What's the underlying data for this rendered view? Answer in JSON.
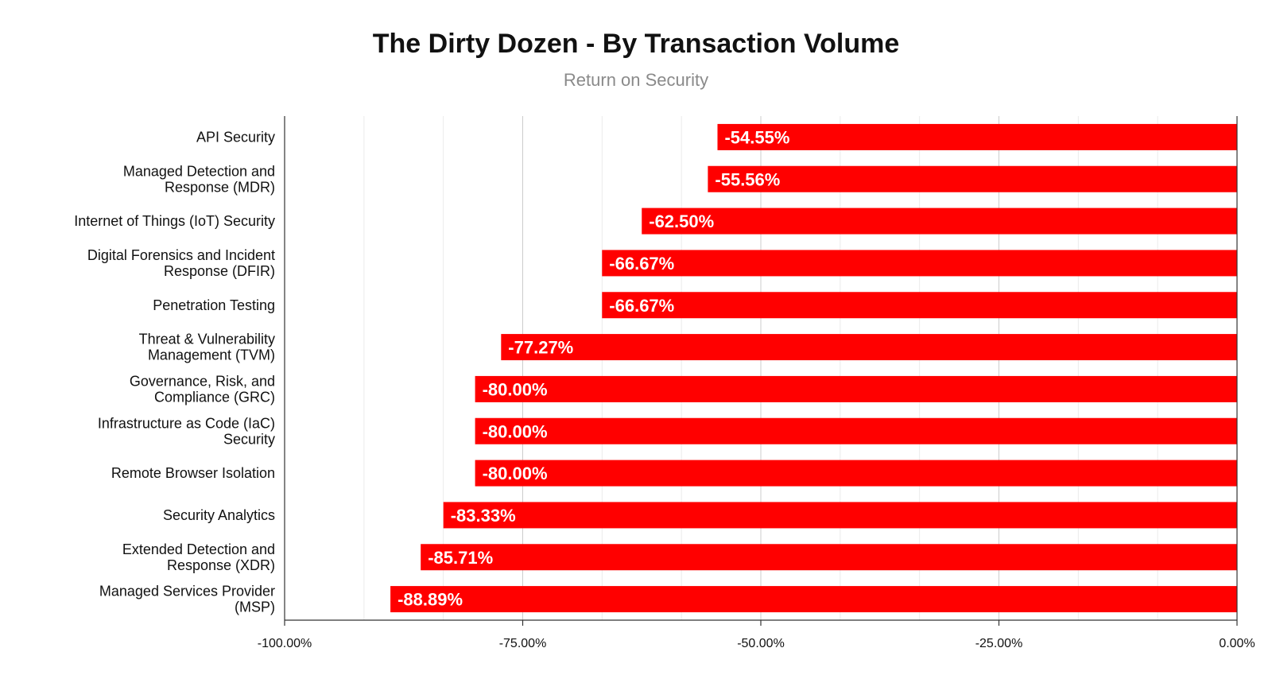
{
  "chart_data": {
    "type": "bar",
    "orientation": "horizontal",
    "title": "The Dirty Dozen - By Transaction Volume",
    "subtitle": "Return on Security",
    "xlabel": "",
    "ylabel": "",
    "xlim": [
      -100,
      0
    ],
    "x_ticks": [
      "-100.00%",
      "-75.00%",
      "-50.00%",
      "-25.00%",
      "0.00%"
    ],
    "x_tick_values": [
      -100,
      -75,
      -50,
      -25,
      0
    ],
    "grid": true,
    "legend": "none",
    "bar_color": "#ff0000",
    "categories": [
      [
        "API Security"
      ],
      [
        "Managed Detection and",
        "Response (MDR)"
      ],
      [
        "Internet of Things (IoT) Security"
      ],
      [
        "Digital Forensics and Incident",
        "Response (DFIR)"
      ],
      [
        "Penetration Testing"
      ],
      [
        "Threat & Vulnerability",
        "Management (TVM)"
      ],
      [
        "Governance, Risk, and",
        "Compliance (GRC)"
      ],
      [
        "Infrastructure as Code (IaC)",
        "Security"
      ],
      [
        "Remote Browser Isolation"
      ],
      [
        "Security Analytics"
      ],
      [
        "Extended Detection and",
        "Response (XDR)"
      ],
      [
        "Managed Services Provider",
        "(MSP)"
      ]
    ],
    "values": [
      -54.55,
      -55.56,
      -62.5,
      -66.67,
      -66.67,
      -77.27,
      -80.0,
      -80.0,
      -80.0,
      -83.33,
      -85.71,
      -88.89
    ],
    "data_labels": [
      "-54.55%",
      "-55.56%",
      "-62.50%",
      "-66.67%",
      "-66.67%",
      "-77.27%",
      "-80.00%",
      "-80.00%",
      "-80.00%",
      "-83.33%",
      "-85.71%",
      "-88.89%"
    ]
  }
}
